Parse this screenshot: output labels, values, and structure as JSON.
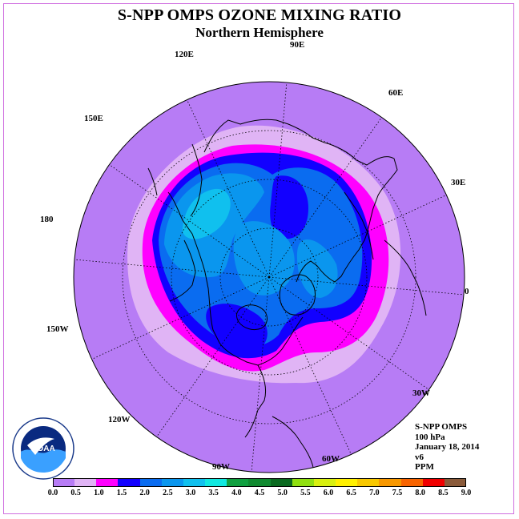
{
  "title": "S-NPP OMPS OZONE MIXING RATIO",
  "subtitle": "Northern Hemisphere",
  "longitude_labels": [
    "90E",
    "60E",
    "30E",
    "0",
    "30W",
    "60W",
    "90W",
    "120W",
    "150W",
    "180",
    "150E",
    "120E"
  ],
  "info": {
    "instrument": "S-NPP OMPS",
    "level": "100 hPa",
    "date": "January 18, 2014",
    "version": "v6",
    "units": "PPM"
  },
  "logo_text": "NOAA",
  "colorbar": {
    "ticks": [
      "0.0",
      "0.5",
      "1.0",
      "1.5",
      "2.0",
      "2.5",
      "3.0",
      "3.5",
      "4.0",
      "4.5",
      "5.0",
      "5.5",
      "6.0",
      "6.5",
      "7.0",
      "7.5",
      "8.0",
      "8.5",
      "9.0"
    ],
    "colors": [
      "#b77cf5",
      "#e0b4f5",
      "#ff00ff",
      "#1200ff",
      "#0a6cf0",
      "#0a96ee",
      "#10c0ee",
      "#10e8e0",
      "#10a040",
      "#108a30",
      "#0a6a20",
      "#90e010",
      "#d8f010",
      "#fff000",
      "#f8c800",
      "#f89800",
      "#f86400",
      "#f00000",
      "#8a5a3a"
    ]
  },
  "map": {
    "background": "#b77cf5",
    "regions": [
      {
        "level": "0.5-1.0",
        "color": "#e0b4f5"
      },
      {
        "level": "1.0-1.5",
        "color": "#ff00ff"
      },
      {
        "level": "1.5-2.0",
        "color": "#1200ff"
      },
      {
        "level": "2.0-2.5",
        "color": "#0a6cf0"
      },
      {
        "level": "2.5-3.0",
        "color": "#0a96ee"
      },
      {
        "level": "3.0-3.5",
        "color": "#10c0ee"
      }
    ]
  }
}
